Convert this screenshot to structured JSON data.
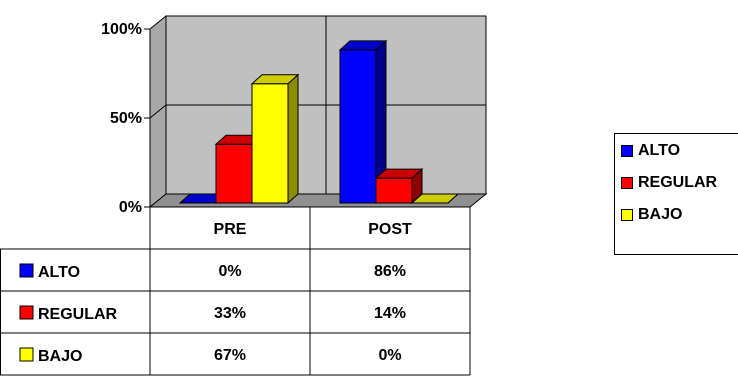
{
  "chart_data": {
    "type": "bar",
    "categories": [
      "PRE",
      "POST"
    ],
    "series": [
      {
        "name": "ALTO",
        "values": [
          0,
          86
        ],
        "color": "#0000ff"
      },
      {
        "name": "REGULAR",
        "values": [
          33,
          14
        ],
        "color": "#ff0000"
      },
      {
        "name": "BAJO",
        "values": [
          67,
          0
        ],
        "color": "#ffff00"
      }
    ],
    "ylim": [
      0,
      100
    ],
    "yticks": [
      "0%",
      "50%",
      "100%"
    ],
    "table": [
      {
        "label": "ALTO",
        "values": [
          "0%",
          "86%"
        ]
      },
      {
        "label": "REGULAR",
        "values": [
          "33%",
          "14%"
        ]
      },
      {
        "label": "BAJO",
        "values": [
          "67%",
          "0%"
        ]
      }
    ],
    "legend": [
      "ALTO",
      "REGULAR",
      "BAJO"
    ],
    "legend_position": "right",
    "grid": true,
    "plot_color": "#c0c0c0"
  }
}
